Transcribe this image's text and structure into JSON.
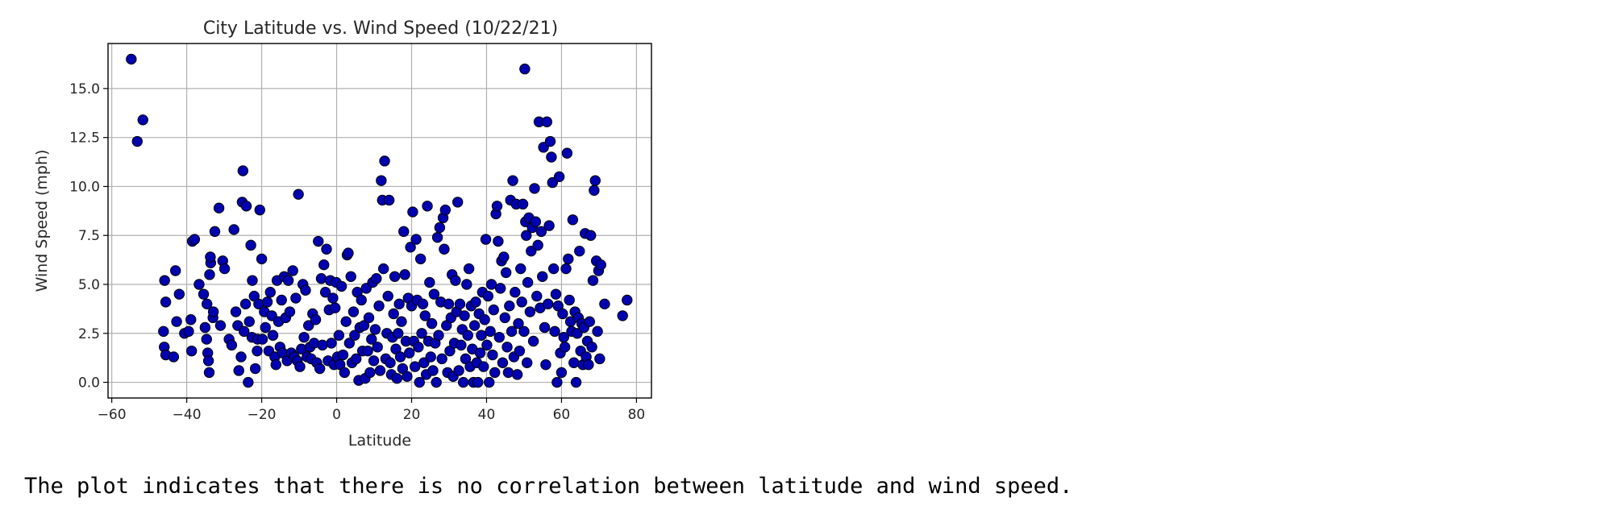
{
  "chart_data": {
    "type": "scatter",
    "title": "City Latitude vs. Wind Speed (10/22/21)",
    "xlabel": "Latitude",
    "ylabel": "Wind Speed (mph)",
    "xlim": [
      -61,
      84
    ],
    "ylim": [
      -0.8,
      17.3
    ],
    "xticks": [
      -60,
      -40,
      -20,
      0,
      20,
      40,
      60,
      80
    ],
    "xtick_labels": [
      "−60",
      "−40",
      "−20",
      "0",
      "20",
      "40",
      "60",
      "80"
    ],
    "yticks": [
      0.0,
      2.5,
      5.0,
      7.5,
      10.0,
      12.5,
      15.0
    ],
    "ytick_labels": [
      "0.0",
      "2.5",
      "5.0",
      "7.5",
      "10.0",
      "12.5",
      "15.0"
    ],
    "grid": true,
    "marker_color": "#0000b0",
    "marker_edge_color": "#000000",
    "points": [
      [
        -54.8,
        16.5
      ],
      [
        -53.2,
        12.3
      ],
      [
        -51.7,
        13.4
      ],
      [
        -45.9,
        5.2
      ],
      [
        -45.6,
        4.1
      ],
      [
        -46.2,
        2.6
      ],
      [
        -46.0,
        1.8
      ],
      [
        -45.6,
        1.4
      ],
      [
        -43.5,
        1.3
      ],
      [
        -43.0,
        5.7
      ],
      [
        -42.7,
        3.1
      ],
      [
        -42.0,
        4.5
      ],
      [
        -40.6,
        2.5
      ],
      [
        -39.5,
        2.6
      ],
      [
        -38.9,
        3.2
      ],
      [
        -38.7,
        1.6
      ],
      [
        -38.5,
        7.2
      ],
      [
        -37.9,
        7.3
      ],
      [
        -36.7,
        5.0
      ],
      [
        -35.5,
        4.5
      ],
      [
        -35.1,
        2.8
      ],
      [
        -34.7,
        2.2
      ],
      [
        -34.4,
        1.5
      ],
      [
        -34.2,
        1.1
      ],
      [
        -34.0,
        0.5
      ],
      [
        -34.6,
        4.0
      ],
      [
        -33.9,
        5.5
      ],
      [
        -33.6,
        6.1
      ],
      [
        -33.7,
        6.4
      ],
      [
        -33.0,
        3.3
      ],
      [
        -32.9,
        3.6
      ],
      [
        -32.5,
        7.7
      ],
      [
        -31.4,
        8.9
      ],
      [
        -31.0,
        2.9
      ],
      [
        -30.4,
        6.2
      ],
      [
        -29.9,
        5.8
      ],
      [
        -28.7,
        2.2
      ],
      [
        -28.0,
        1.9
      ],
      [
        -27.4,
        7.8
      ],
      [
        -26.9,
        3.6
      ],
      [
        -26.4,
        2.9
      ],
      [
        -26.1,
        0.6
      ],
      [
        -25.5,
        1.3
      ],
      [
        -25.2,
        9.2
      ],
      [
        -25.0,
        10.8
      ],
      [
        -24.7,
        2.6
      ],
      [
        -24.3,
        4.0
      ],
      [
        -24.1,
        9.0
      ],
      [
        -23.6,
        0.0
      ],
      [
        -23.3,
        3.1
      ],
      [
        -22.9,
        7.0
      ],
      [
        -22.6,
        2.3
      ],
      [
        -22.5,
        5.2
      ],
      [
        -22.0,
        4.4
      ],
      [
        -21.7,
        0.7
      ],
      [
        -21.2,
        1.6
      ],
      [
        -21.1,
        2.2
      ],
      [
        -20.8,
        4.0
      ],
      [
        -20.5,
        8.8
      ],
      [
        -20.0,
        6.3
      ],
      [
        -19.8,
        2.2
      ],
      [
        -19.3,
        3.6
      ],
      [
        -19.0,
        2.8
      ],
      [
        -18.5,
        4.1
      ],
      [
        -18.1,
        1.6
      ],
      [
        -17.7,
        4.6
      ],
      [
        -17.3,
        3.4
      ],
      [
        -17.0,
        2.4
      ],
      [
        -16.5,
        1.3
      ],
      [
        -16.2,
        0.9
      ],
      [
        -15.9,
        5.2
      ],
      [
        -15.5,
        3.1
      ],
      [
        -15.1,
        1.8
      ],
      [
        -14.7,
        4.2
      ],
      [
        -14.4,
        1.5
      ],
      [
        -14.0,
        5.4
      ],
      [
        -13.6,
        3.3
      ],
      [
        -13.2,
        1.1
      ],
      [
        -12.9,
        5.2
      ],
      [
        -12.5,
        3.6
      ],
      [
        -12.1,
        1.5
      ],
      [
        -11.7,
        5.7
      ],
      [
        -11.3,
        1.3
      ],
      [
        -10.9,
        4.3
      ],
      [
        -10.5,
        1.1
      ],
      [
        -10.2,
        9.6
      ],
      [
        -9.8,
        0.8
      ],
      [
        -9.4,
        1.7
      ],
      [
        -9.0,
        5.0
      ],
      [
        -8.7,
        2.3
      ],
      [
        -8.3,
        4.7
      ],
      [
        -7.9,
        1.3
      ],
      [
        -7.5,
        2.9
      ],
      [
        -7.1,
        1.8
      ],
      [
        -6.8,
        1.2
      ],
      [
        -6.4,
        3.5
      ],
      [
        -6.0,
        2.0
      ],
      [
        -5.6,
        3.2
      ],
      [
        -5.3,
        1.0
      ],
      [
        -4.9,
        7.2
      ],
      [
        -4.5,
        0.7
      ],
      [
        -4.1,
        5.3
      ],
      [
        -3.8,
        1.9
      ],
      [
        -3.4,
        6.0
      ],
      [
        -3.0,
        4.6
      ],
      [
        -2.7,
        6.8
      ],
      [
        -2.3,
        1.1
      ],
      [
        -2.0,
        3.7
      ],
      [
        -1.7,
        5.2
      ],
      [
        -1.4,
        2.0
      ],
      [
        -1.0,
        4.3
      ],
      [
        -0.7,
        0.9
      ],
      [
        -0.4,
        3.8
      ],
      [
        -0.1,
        5.1
      ],
      [
        0.2,
        1.3
      ],
      [
        0.6,
        2.4
      ],
      [
        0.9,
        0.9
      ],
      [
        1.3,
        4.9
      ],
      [
        1.7,
        1.4
      ],
      [
        2.1,
        0.5
      ],
      [
        2.5,
        3.1
      ],
      [
        2.8,
        6.5
      ],
      [
        3.1,
        6.6
      ],
      [
        3.4,
        2.0
      ],
      [
        3.8,
        5.4
      ],
      [
        4.1,
        1.0
      ],
      [
        4.5,
        3.6
      ],
      [
        4.8,
        2.4
      ],
      [
        5.2,
        1.2
      ],
      [
        5.5,
        4.6
      ],
      [
        5.9,
        0.1
      ],
      [
        6.2,
        2.8
      ],
      [
        6.6,
        4.2
      ],
      [
        6.9,
        1.6
      ],
      [
        7.3,
        2.9
      ],
      [
        7.6,
        0.2
      ],
      [
        7.9,
        4.8
      ],
      [
        8.3,
        1.6
      ],
      [
        8.6,
        3.3
      ],
      [
        8.9,
        0.5
      ],
      [
        9.3,
        2.2
      ],
      [
        9.6,
        5.1
      ],
      [
        9.9,
        1.1
      ],
      [
        10.3,
        2.7
      ],
      [
        10.6,
        5.3
      ],
      [
        10.9,
        1.8
      ],
      [
        11.3,
        3.9
      ],
      [
        11.6,
        0.6
      ],
      [
        11.9,
        10.3
      ],
      [
        12.2,
        9.3
      ],
      [
        12.5,
        5.8
      ],
      [
        12.8,
        11.3
      ],
      [
        13.1,
        1.2
      ],
      [
        13.4,
        2.5
      ],
      [
        13.7,
        4.4
      ],
      [
        14.0,
        9.3
      ],
      [
        14.3,
        1.0
      ],
      [
        14.6,
        0.4
      ],
      [
        14.9,
        2.3
      ],
      [
        15.2,
        3.5
      ],
      [
        15.5,
        5.4
      ],
      [
        15.8,
        1.7
      ],
      [
        16.1,
        0.2
      ],
      [
        16.4,
        2.5
      ],
      [
        16.7,
        4.0
      ],
      [
        17.0,
        1.3
      ],
      [
        17.3,
        3.1
      ],
      [
        17.6,
        0.7
      ],
      [
        17.9,
        7.7
      ],
      [
        18.2,
        5.5
      ],
      [
        18.5,
        2.1
      ],
      [
        18.8,
        0.3
      ],
      [
        19.1,
        4.3
      ],
      [
        19.4,
        1.5
      ],
      [
        19.7,
        6.9
      ],
      [
        20.0,
        3.9
      ],
      [
        20.3,
        8.7
      ],
      [
        20.6,
        2.1
      ],
      [
        20.9,
        0.8
      ],
      [
        21.2,
        7.3
      ],
      [
        21.5,
        4.2
      ],
      [
        21.8,
        1.8
      ],
      [
        22.1,
        0.0
      ],
      [
        22.4,
        6.3
      ],
      [
        22.7,
        2.5
      ],
      [
        23.0,
        4.0
      ],
      [
        23.3,
        1.0
      ],
      [
        23.6,
        3.4
      ],
      [
        23.9,
        0.4
      ],
      [
        24.2,
        9.0
      ],
      [
        24.5,
        2.1
      ],
      [
        24.8,
        5.1
      ],
      [
        25.1,
        1.3
      ],
      [
        25.4,
        3.0
      ],
      [
        25.7,
        0.6
      ],
      [
        26.0,
        4.5
      ],
      [
        26.3,
        2.0
      ],
      [
        26.6,
        0.0
      ],
      [
        26.9,
        7.4
      ],
      [
        27.2,
        2.4
      ],
      [
        27.5,
        7.9
      ],
      [
        27.8,
        4.1
      ],
      [
        28.1,
        1.2
      ],
      [
        28.4,
        8.4
      ],
      [
        28.7,
        6.8
      ],
      [
        29.0,
        8.8
      ],
      [
        29.3,
        2.9
      ],
      [
        29.6,
        0.5
      ],
      [
        29.9,
        4.0
      ],
      [
        30.2,
        1.6
      ],
      [
        30.5,
        3.3
      ],
      [
        30.8,
        5.5
      ],
      [
        31.1,
        0.3
      ],
      [
        31.4,
        2.0
      ],
      [
        31.7,
        5.2
      ],
      [
        32.0,
        3.6
      ],
      [
        32.3,
        9.2
      ],
      [
        32.6,
        0.6
      ],
      [
        32.9,
        4.0
      ],
      [
        33.2,
        1.9
      ],
      [
        33.5,
        2.7
      ],
      [
        33.8,
        0.0
      ],
      [
        34.1,
        3.4
      ],
      [
        34.4,
        1.2
      ],
      [
        34.7,
        5.0
      ],
      [
        35.0,
        2.4
      ],
      [
        35.3,
        5.8
      ],
      [
        35.6,
        0.8
      ],
      [
        35.9,
        3.9
      ],
      [
        36.2,
        1.7
      ],
      [
        36.5,
        0.0
      ],
      [
        36.8,
        2.9
      ],
      [
        37.1,
        4.1
      ],
      [
        37.4,
        1.0
      ],
      [
        37.7,
        0.0
      ],
      [
        38.0,
        3.5
      ],
      [
        38.3,
        1.5
      ],
      [
        38.6,
        2.4
      ],
      [
        38.9,
        4.6
      ],
      [
        39.2,
        0.8
      ],
      [
        39.5,
        3.2
      ],
      [
        39.8,
        7.3
      ],
      [
        40.1,
        1.9
      ],
      [
        40.4,
        4.4
      ],
      [
        40.7,
        0.0
      ],
      [
        41.0,
        2.6
      ],
      [
        41.3,
        5.0
      ],
      [
        41.6,
        1.4
      ],
      [
        41.9,
        3.7
      ],
      [
        42.2,
        0.5
      ],
      [
        42.5,
        8.6
      ],
      [
        42.8,
        9.0
      ],
      [
        43.1,
        7.2
      ],
      [
        43.4,
        2.3
      ],
      [
        43.7,
        4.8
      ],
      [
        44.0,
        6.2
      ],
      [
        44.3,
        1.0
      ],
      [
        44.6,
        6.4
      ],
      [
        44.9,
        3.3
      ],
      [
        45.2,
        5.6
      ],
      [
        45.5,
        1.8
      ],
      [
        45.8,
        0.5
      ],
      [
        46.1,
        3.9
      ],
      [
        46.4,
        9.3
      ],
      [
        46.7,
        2.6
      ],
      [
        47.0,
        10.3
      ],
      [
        47.3,
        1.3
      ],
      [
        47.6,
        4.6
      ],
      [
        47.9,
        9.1
      ],
      [
        48.2,
        0.4
      ],
      [
        48.5,
        3.0
      ],
      [
        48.8,
        1.6
      ],
      [
        49.1,
        5.8
      ],
      [
        49.4,
        4.1
      ],
      [
        49.7,
        9.1
      ],
      [
        50.0,
        2.6
      ],
      [
        50.2,
        16.0
      ],
      [
        50.4,
        8.2
      ],
      [
        50.6,
        7.5
      ],
      [
        50.8,
        1.0
      ],
      [
        51.0,
        5.1
      ],
      [
        51.3,
        8.4
      ],
      [
        51.6,
        3.6
      ],
      [
        51.9,
        6.7
      ],
      [
        52.2,
        7.9
      ],
      [
        52.5,
        2.1
      ],
      [
        52.8,
        9.9
      ],
      [
        53.1,
        8.2
      ],
      [
        53.4,
        4.4
      ],
      [
        53.7,
        7.0
      ],
      [
        54.0,
        13.3
      ],
      [
        54.3,
        3.8
      ],
      [
        54.6,
        7.7
      ],
      [
        54.9,
        5.4
      ],
      [
        55.2,
        12.0
      ],
      [
        55.5,
        2.8
      ],
      [
        55.8,
        0.9
      ],
      [
        56.1,
        13.3
      ],
      [
        56.4,
        4.0
      ],
      [
        56.7,
        8.0
      ],
      [
        57.0,
        12.3
      ],
      [
        57.3,
        11.5
      ],
      [
        57.6,
        10.2
      ],
      [
        57.9,
        5.8
      ],
      [
        58.2,
        2.6
      ],
      [
        58.5,
        4.5
      ],
      [
        58.8,
        0.0
      ],
      [
        59.1,
        3.9
      ],
      [
        59.4,
        10.5
      ],
      [
        59.7,
        1.5
      ],
      [
        60.0,
        0.5
      ],
      [
        60.3,
        3.5
      ],
      [
        60.6,
        2.3
      ],
      [
        60.9,
        1.8
      ],
      [
        61.2,
        5.8
      ],
      [
        61.5,
        11.7
      ],
      [
        61.8,
        6.3
      ],
      [
        62.1,
        4.2
      ],
      [
        62.4,
        3.1
      ],
      [
        62.7,
        2.6
      ],
      [
        63.0,
        8.3
      ],
      [
        63.3,
        1.0
      ],
      [
        63.6,
        3.6
      ],
      [
        63.9,
        0.0
      ],
      [
        64.2,
        2.5
      ],
      [
        64.5,
        3.3
      ],
      [
        64.8,
        6.7
      ],
      [
        65.1,
        1.6
      ],
      [
        65.4,
        3.0
      ],
      [
        65.7,
        0.9
      ],
      [
        66.0,
        2.8
      ],
      [
        66.3,
        7.6
      ],
      [
        66.6,
        1.3
      ],
      [
        66.9,
        2.1
      ],
      [
        67.2,
        0.9
      ],
      [
        67.5,
        3.1
      ],
      [
        67.8,
        7.5
      ],
      [
        68.1,
        1.8
      ],
      [
        68.4,
        5.2
      ],
      [
        68.7,
        9.8
      ],
      [
        69.0,
        10.3
      ],
      [
        69.3,
        6.2
      ],
      [
        69.6,
        2.6
      ],
      [
        69.9,
        5.7
      ],
      [
        70.2,
        1.2
      ],
      [
        70.5,
        6.0
      ],
      [
        71.5,
        4.0
      ],
      [
        76.3,
        3.4
      ],
      [
        77.5,
        4.2
      ]
    ]
  },
  "caption": "The plot indicates that there is no correlation between latitude and wind speed."
}
